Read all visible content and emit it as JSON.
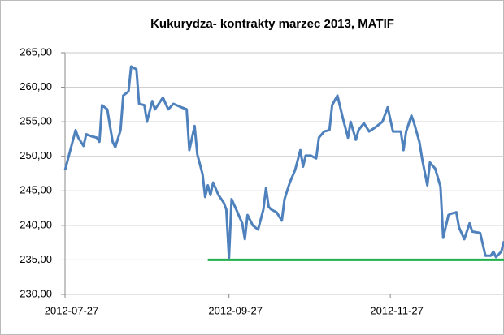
{
  "chart_data": {
    "type": "line",
    "title": "Kukurydza- kontrakty marzec 2013, MATIF",
    "x": [
      "2012-07-27",
      "2012-07-29",
      "2012-07-31",
      "2012-08-01",
      "2012-08-03",
      "2012-08-04",
      "2012-08-06",
      "2012-08-08",
      "2012-08-09",
      "2012-08-10",
      "2012-08-12",
      "2012-08-13",
      "2012-08-14",
      "2012-08-15",
      "2012-08-17",
      "2012-08-18",
      "2012-08-20",
      "2012-08-21",
      "2012-08-23",
      "2012-08-24",
      "2012-08-26",
      "2012-08-27",
      "2012-08-29",
      "2012-08-30",
      "2012-09-02",
      "2012-09-04",
      "2012-09-06",
      "2012-09-09",
      "2012-09-11",
      "2012-09-12",
      "2012-09-14",
      "2012-09-15",
      "2012-09-17",
      "2012-09-18",
      "2012-09-19",
      "2012-09-20",
      "2012-09-21",
      "2012-09-23",
      "2012-09-25",
      "2012-09-26",
      "2012-09-27",
      "2012-09-28",
      "2012-09-30",
      "2012-10-02",
      "2012-10-03",
      "2012-10-04",
      "2012-10-06",
      "2012-10-08",
      "2012-10-10",
      "2012-10-11",
      "2012-10-12",
      "2012-10-13",
      "2012-10-15",
      "2012-10-17",
      "2012-10-18",
      "2012-10-20",
      "2012-10-22",
      "2012-10-24",
      "2012-10-25",
      "2012-10-26",
      "2012-10-28",
      "2012-10-30",
      "2012-10-31",
      "2012-11-02",
      "2012-11-04",
      "2012-11-05",
      "2012-11-07",
      "2012-11-09",
      "2012-11-11",
      "2012-11-12",
      "2012-11-14",
      "2012-11-15",
      "2012-11-17",
      "2012-11-19",
      "2012-11-21",
      "2012-11-22",
      "2012-11-24",
      "2012-11-26",
      "2012-11-28",
      "2012-11-30",
      "2012-12-01",
      "2012-12-02",
      "2012-12-03",
      "2012-12-05",
      "2012-12-06",
      "2012-12-08",
      "2012-12-09",
      "2012-12-11",
      "2012-12-12",
      "2012-12-14",
      "2012-12-16",
      "2012-12-17",
      "2012-12-19",
      "2012-12-20",
      "2012-12-22",
      "2012-12-23",
      "2012-12-25",
      "2012-12-27",
      "2012-12-28",
      "2012-12-31",
      "2013-01-02",
      "2013-01-04",
      "2013-01-05",
      "2013-01-06",
      "2013-01-08",
      "2013-01-09"
    ],
    "values": [
      248.0,
      250.9,
      253.8,
      252.7,
      251.5,
      253.2,
      252.9,
      252.7,
      252.1,
      257.4,
      256.8,
      254.4,
      252.1,
      251.3,
      253.8,
      258.8,
      259.4,
      263.0,
      262.6,
      257.6,
      257.4,
      255.0,
      258.0,
      256.8,
      258.5,
      256.8,
      257.6,
      257.1,
      256.8,
      250.9,
      254.4,
      250.3,
      247.4,
      244.1,
      245.8,
      244.4,
      246.2,
      244.4,
      243.3,
      242.3,
      235.3,
      243.8,
      242.1,
      240.3,
      238.0,
      241.5,
      240.0,
      239.4,
      242.3,
      245.4,
      242.7,
      242.3,
      241.9,
      240.7,
      243.8,
      246.2,
      248.0,
      250.9,
      248.5,
      250.1,
      250.1,
      249.7,
      252.7,
      253.6,
      253.8,
      257.4,
      258.8,
      255.6,
      252.7,
      255.0,
      252.4,
      253.8,
      254.8,
      253.6,
      254.1,
      254.4,
      255.0,
      257.1,
      253.6,
      253.6,
      253.6,
      250.9,
      253.6,
      255.9,
      254.8,
      252.1,
      249.7,
      245.8,
      249.1,
      248.2,
      245.6,
      238.2,
      241.5,
      241.7,
      241.9,
      239.7,
      238.0,
      240.3,
      239.1,
      238.9,
      235.6,
      235.6,
      236.2,
      235.4,
      236.2,
      237.7
    ],
    "color": "#4f81bd",
    "reference_line": {
      "value": 235,
      "from": "2012-09-19",
      "color": "#22b14c"
    },
    "xlim": [
      "2012-07-27",
      "2013-01-09"
    ],
    "xticks": [
      "2012-07-27",
      "2012-09-27",
      "2012-11-27"
    ],
    "ylim": [
      230,
      265
    ],
    "yticks": [
      {
        "value": 230,
        "label": "230,00"
      },
      {
        "value": 235,
        "label": "235,00"
      },
      {
        "value": 240,
        "label": "240,00"
      },
      {
        "value": 245,
        "label": "245,00"
      },
      {
        "value": 250,
        "label": "250,00"
      },
      {
        "value": 255,
        "label": "255,00"
      },
      {
        "value": 260,
        "label": "260,00"
      },
      {
        "value": 265,
        "label": "265,00"
      }
    ],
    "grid": true
  }
}
